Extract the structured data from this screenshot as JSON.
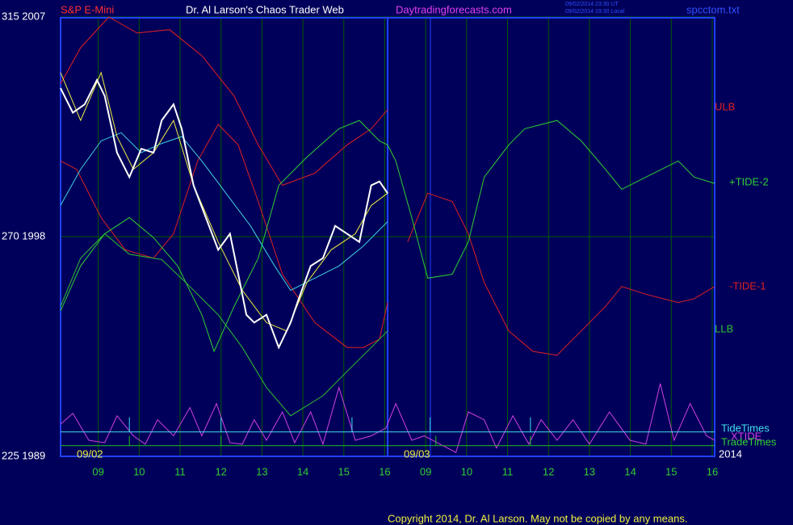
{
  "chart_data": {
    "type": "line",
    "title": "S&P E-Mini",
    "subtitle": "Dr. Al Larson's Chaos Trader Web",
    "annotations": [
      "Daytradingforecasts.com",
      "09/02/2014 23:30 UT",
      "09/02/2014 19:30 Local",
      "spcctom.txt",
      "09/02",
      "09/03",
      "2014",
      "Copyright 2014, Dr. Al Larson. May not be copied by any means."
    ],
    "xlim": [
      8.08,
      24.06
    ],
    "xticks": [
      {
        "value": 9,
        "label": "09"
      },
      10,
      11,
      12,
      13,
      14,
      15,
      16,
      {
        "value": 17,
        "label": "09"
      },
      {
        "value": 18,
        "label": "10"
      },
      {
        "value": 19,
        "label": "11"
      },
      {
        "value": 20,
        "label": "12"
      },
      {
        "value": 21,
        "label": "13"
      },
      {
        "value": 22,
        "label": "14"
      },
      {
        "value": 23,
        "label": "15"
      },
      {
        "value": 24,
        "label": "16"
      }
    ],
    "ylim": [
      225,
      315
    ],
    "yticks": [
      {
        "value": 315,
        "label": "315 2007"
      },
      {
        "value": 270,
        "label": "270 1998"
      },
      {
        "value": 225,
        "label": "225 1989"
      }
    ],
    "grid": true,
    "series": [
      {
        "name": "ULB",
        "color": "#e02020",
        "x": [
          8.08,
          8.57,
          9.26,
          9.95,
          10.74,
          11.53,
          12.32,
          12.91,
          13.5,
          14.29,
          15.08,
          15.67,
          16.07
        ],
        "values": [
          301.3,
          308.7,
          315,
          311.7,
          312.4,
          307.1,
          298.8,
          288.8,
          280.5,
          283.0,
          288.8,
          292.1,
          296.0
        ]
      },
      {
        "name": "-TIDE-1",
        "color": "#e02020",
        "x": [
          8.08,
          8.47,
          9.07,
          9.66,
          10.35,
          10.84,
          11.43,
          11.93,
          12.42,
          12.91,
          13.5,
          14.29,
          15.08,
          15.48,
          15.87,
          16.07,
          16.27,
          16.56,
          17.05,
          17.65,
          18.04,
          18.43,
          19.03,
          19.62,
          20.21,
          20.8,
          21.39,
          21.79,
          22.38,
          23.17,
          23.56,
          24.06
        ],
        "values": [
          285.5,
          283.8,
          273.9,
          267.3,
          265.6,
          270.6,
          285.5,
          293.0,
          288.8,
          277.2,
          262.3,
          252.4,
          247.3,
          247.3,
          249.0,
          256.5,
          null,
          268.9,
          278.9,
          277.2,
          270.6,
          260.6,
          250.7,
          246.5,
          245.7,
          250.7,
          255.7,
          259.8,
          258.2,
          256.5,
          257.3,
          259.8
        ]
      },
      {
        "name": "+TIDE-2",
        "color": "#30d030",
        "x": [
          8.08,
          8.57,
          9.16,
          9.76,
          10.35,
          10.94,
          11.53,
          11.83,
          12.32,
          12.91,
          13.41,
          14.1,
          14.88,
          15.38,
          15.87,
          16.07,
          16.27,
          16.66,
          17.05,
          17.65,
          18.04,
          18.43,
          19.03,
          19.42,
          20.21,
          20.8,
          21.39,
          21.79,
          22.38,
          23.17,
          23.56,
          24.06
        ],
        "values": [
          254.8,
          264.0,
          270.6,
          273.9,
          269.8,
          264.0,
          254.0,
          246.5,
          255.7,
          265.6,
          280.5,
          286.3,
          292.1,
          293.8,
          289.6,
          288.8,
          285.5,
          273.9,
          261.5,
          262.3,
          268.9,
          282.2,
          288.8,
          292.1,
          293.8,
          289.6,
          283.8,
          279.7,
          282.2,
          285.5,
          282.2,
          280.9
        ]
      },
      {
        "name": "LLB",
        "color": "#30c030",
        "x": [
          8.08,
          8.57,
          9.16,
          9.76,
          10.55,
          11.14,
          11.93,
          12.52,
          13.11,
          13.7,
          14.49,
          15.08,
          15.67,
          16.07
        ],
        "values": [
          255.7,
          265.6,
          270.6,
          266.4,
          265.3,
          260.6,
          254.0,
          247.3,
          239.1,
          233.3,
          237.4,
          242.4,
          247.3,
          250.7
        ]
      },
      {
        "color": "#40d0e0",
        "x": [
          8.08,
          8.57,
          9.07,
          9.56,
          10.05,
          10.55,
          11.04,
          11.53,
          12.12,
          12.72,
          13.31,
          13.7,
          14.29,
          14.88,
          15.48,
          16.07
        ],
        "values": [
          276.4,
          283.8,
          289.6,
          291.3,
          287.2,
          289.1,
          290.5,
          285.5,
          278.9,
          272.2,
          264.0,
          259.0,
          261.5,
          264.0,
          268.1,
          273.1
        ]
      },
      {
        "color": "#f0f040",
        "x": [
          8.08,
          8.57,
          9.07,
          9.46,
          9.86,
          10.35,
          10.84,
          11.33,
          11.93,
          12.52,
          13.11,
          13.6,
          14.1,
          14.69,
          15.28,
          15.67,
          16.07
        ],
        "values": [
          303.6,
          293.8,
          303.6,
          290.5,
          283.8,
          287.2,
          293.8,
          280.5,
          268.9,
          259.0,
          252.4,
          250.7,
          260.6,
          267.3,
          270.6,
          276.4,
          278.9
        ]
      },
      {
        "color": "#ffffff",
        "x": [
          8.08,
          8.38,
          8.67,
          8.97,
          9.16,
          9.46,
          9.76,
          10.05,
          10.35,
          10.55,
          10.84,
          11.04,
          11.33,
          11.63,
          11.93,
          12.22,
          12.42,
          12.62,
          12.81,
          13.11,
          13.41,
          13.7,
          13.9,
          14.19,
          14.49,
          14.79,
          15.08,
          15.38,
          15.67,
          15.87,
          16.07
        ],
        "values": [
          300.4,
          295.4,
          297.1,
          302.1,
          298.8,
          287.2,
          282.2,
          288.0,
          287.2,
          293.8,
          297.1,
          292.1,
          280.5,
          273.9,
          267.3,
          270.6,
          262.3,
          254.0,
          252.4,
          254.0,
          247.3,
          252.4,
          257.3,
          264.0,
          265.6,
          272.2,
          270.6,
          268.9,
          280.5,
          281.3,
          278.9
        ]
      },
      {
        "name": "XTIDE",
        "color": "#d040e0",
        "x": [
          8.08,
          8.38,
          8.77,
          9.16,
          9.46,
          9.86,
          10.15,
          10.45,
          10.84,
          11.24,
          11.53,
          11.89,
          12.22,
          12.52,
          12.81,
          13.11,
          13.5,
          13.8,
          14.19,
          14.49,
          14.88,
          15.28,
          15.67,
          16.03,
          16.27,
          16.66,
          16.96,
          17.35,
          17.74,
          18.04,
          18.43,
          18.73,
          19.13,
          19.52,
          19.82,
          20.21,
          20.6,
          21.0,
          21.49,
          21.99,
          22.38,
          22.73,
          23.07,
          23.46,
          23.86,
          24.06
        ],
        "values": [
          231.6,
          233.8,
          228.3,
          227.8,
          233.3,
          229.2,
          227.5,
          232.5,
          229.2,
          235.0,
          229.2,
          235.8,
          227.8,
          227.5,
          232.5,
          228.3,
          234.1,
          227.8,
          234.1,
          227.5,
          239.1,
          228.3,
          229.2,
          230.8,
          235.8,
          228.3,
          229.2,
          227.5,
          225.8,
          234.1,
          232.5,
          226.7,
          233.3,
          227.5,
          232.5,
          228.3,
          232.5,
          227.5,
          234.1,
          228.3,
          227.5,
          239.9,
          228.3,
          235.8,
          229.2,
          228.3
        ]
      },
      {
        "name": "TideTimes",
        "color": "#40e0f0",
        "x": [
          8.08,
          9.76,
          9.76,
          9.76,
          12.0,
          12.0,
          12.0,
          15.2,
          15.2,
          15.2,
          17.11,
          17.11,
          17.11,
          19.56,
          19.56,
          19.56,
          24.06
        ],
        "values": [
          230.0,
          230.0,
          233.0,
          230.0,
          230.0,
          233.0,
          230.0,
          230.0,
          233.0,
          230.0,
          230.0,
          233.0,
          230.0,
          230.0,
          233.0,
          230.0,
          230.0
        ]
      },
      {
        "name": "TradeTimes",
        "color": "#20c020",
        "x": [
          8.08,
          9.76,
          9.76,
          9.76,
          12.0,
          12.0,
          12.0,
          17.25,
          17.25,
          17.25,
          19.56,
          19.56,
          19.56,
          24.06
        ],
        "values": [
          227.2,
          227.2,
          229.2,
          227.2,
          227.2,
          229.2,
          227.2,
          227.2,
          229.2,
          227.2,
          227.2,
          229.2,
          227.2,
          227.2
        ]
      }
    ]
  }
}
